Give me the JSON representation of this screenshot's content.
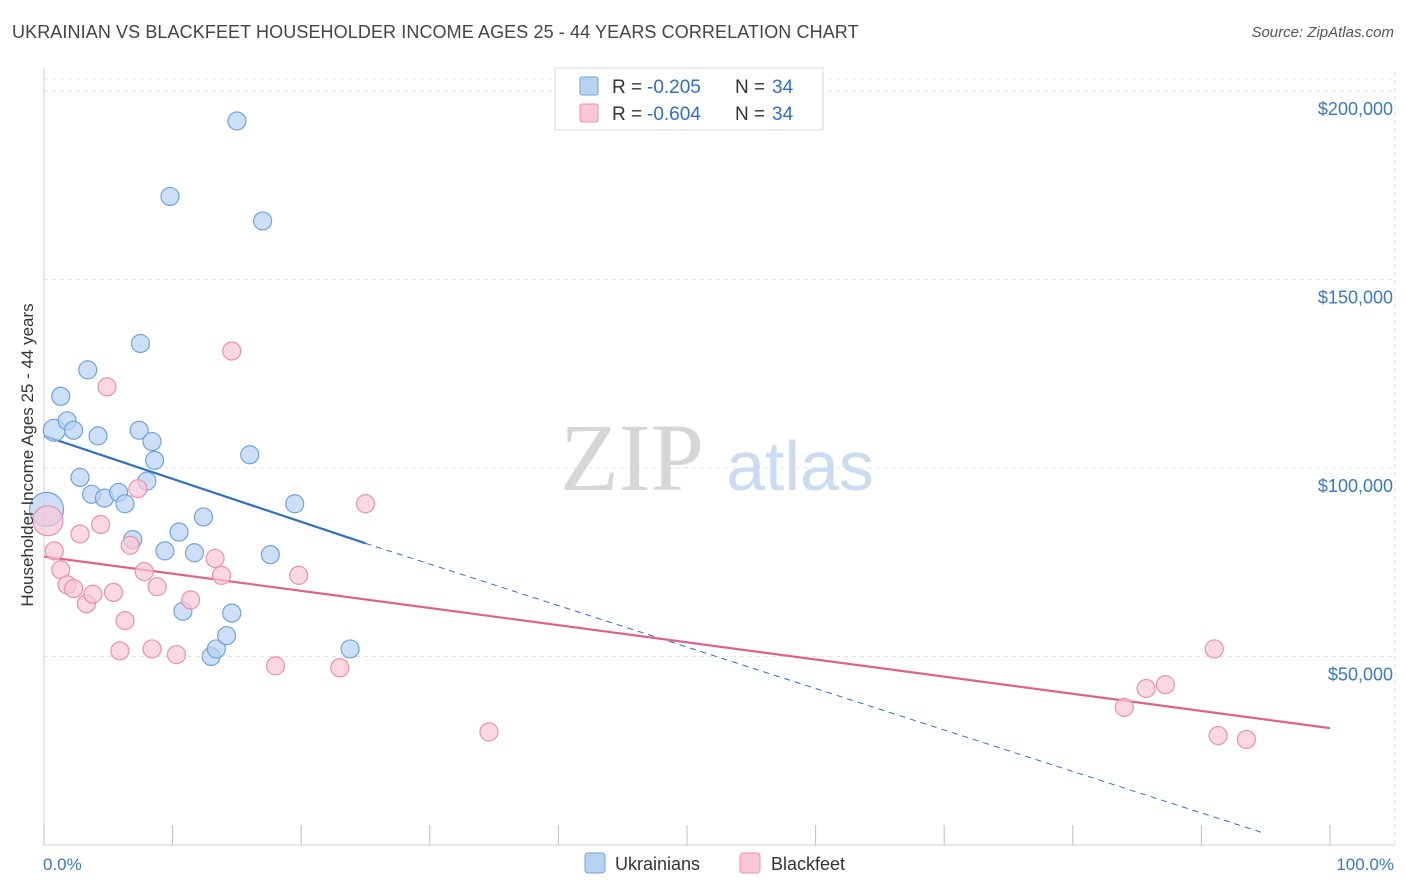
{
  "chart_data": {
    "type": "scatter",
    "title": "UKRAINIAN VS BLACKFEET HOUSEHOLDER INCOME AGES 25 - 44 YEARS CORRELATION CHART",
    "source": "Source: ZipAtlas.com",
    "xlabel": "",
    "ylabel": "Householder Income Ages 25 - 44 years",
    "xlim": [
      0,
      100
    ],
    "ylim": [
      0,
      205000
    ],
    "x_tick_labels": [
      "0.0%",
      "100.0%"
    ],
    "y_ticks": [
      50000,
      100000,
      150000,
      200000
    ],
    "y_tick_labels": [
      "$50,000",
      "$100,000",
      "$150,000",
      "$200,000"
    ],
    "grid": true,
    "watermark": {
      "zip": "ZIP",
      "atlas": "atlas"
    },
    "legend_stats": [
      {
        "r_label": "R =",
        "r_value": "-0.205",
        "n_label": "N =",
        "n_value": "34"
      },
      {
        "r_label": "R =",
        "r_value": "-0.604",
        "n_label": "N =",
        "n_value": "34"
      }
    ],
    "series": [
      {
        "name": "Ukrainians",
        "color": "#6fa3e0",
        "fill": "#b8d2f2",
        "trend_color": "#2d6fd1",
        "trend": {
          "x0": 0,
          "y0": 108500,
          "x1": 25,
          "y1": 80000,
          "dash_to_x": 95,
          "dash_to_y": 3000
        },
        "points": [
          {
            "x": 0.2,
            "y": 89000,
            "size": 17
          },
          {
            "x": 0.8,
            "y": 110000,
            "size": 11
          },
          {
            "x": 1.3,
            "y": 119000,
            "size": 9
          },
          {
            "x": 1.8,
            "y": 112500,
            "size": 9
          },
          {
            "x": 2.3,
            "y": 110000,
            "size": 9
          },
          {
            "x": 2.8,
            "y": 97500,
            "size": 9
          },
          {
            "x": 3.4,
            "y": 126000,
            "size": 9
          },
          {
            "x": 3.7,
            "y": 93000,
            "size": 9
          },
          {
            "x": 4.2,
            "y": 108500,
            "size": 9
          },
          {
            "x": 4.7,
            "y": 92000,
            "size": 9
          },
          {
            "x": 5.8,
            "y": 93500,
            "size": 9
          },
          {
            "x": 6.3,
            "y": 90500,
            "size": 9
          },
          {
            "x": 6.9,
            "y": 81000,
            "size": 9
          },
          {
            "x": 7.4,
            "y": 110000,
            "size": 9
          },
          {
            "x": 7.5,
            "y": 133000,
            "size": 9
          },
          {
            "x": 8.0,
            "y": 96500,
            "size": 9
          },
          {
            "x": 8.4,
            "y": 107000,
            "size": 9
          },
          {
            "x": 8.6,
            "y": 102000,
            "size": 9
          },
          {
            "x": 9.4,
            "y": 78000,
            "size": 9
          },
          {
            "x": 9.8,
            "y": 172000,
            "size": 9
          },
          {
            "x": 10.5,
            "y": 83000,
            "size": 9
          },
          {
            "x": 10.8,
            "y": 62000,
            "size": 9
          },
          {
            "x": 11.7,
            "y": 77500,
            "size": 9
          },
          {
            "x": 12.4,
            "y": 87000,
            "size": 9
          },
          {
            "x": 13.0,
            "y": 50000,
            "size": 9
          },
          {
            "x": 13.4,
            "y": 52000,
            "size": 9
          },
          {
            "x": 14.2,
            "y": 55500,
            "size": 9
          },
          {
            "x": 14.6,
            "y": 61500,
            "size": 9
          },
          {
            "x": 15.0,
            "y": 192000,
            "size": 9
          },
          {
            "x": 16.0,
            "y": 103500,
            "size": 9
          },
          {
            "x": 17.0,
            "y": 165500,
            "size": 9
          },
          {
            "x": 17.6,
            "y": 77000,
            "size": 9
          },
          {
            "x": 19.5,
            "y": 90500,
            "size": 9
          },
          {
            "x": 23.8,
            "y": 52000,
            "size": 9
          }
        ]
      },
      {
        "name": "Blackfeet",
        "color": "#ee8fae",
        "fill": "#f8c6d6",
        "trend_color": "#e0608c",
        "trend": {
          "x0": 0,
          "y0": 76500,
          "x1": 100,
          "y1": 31000
        },
        "points": [
          {
            "x": 0.3,
            "y": 86000,
            "size": 15
          },
          {
            "x": 0.8,
            "y": 78000,
            "size": 9
          },
          {
            "x": 1.3,
            "y": 73000,
            "size": 9
          },
          {
            "x": 1.8,
            "y": 69000,
            "size": 9
          },
          {
            "x": 2.3,
            "y": 68000,
            "size": 9
          },
          {
            "x": 2.8,
            "y": 82500,
            "size": 9
          },
          {
            "x": 3.3,
            "y": 64000,
            "size": 9
          },
          {
            "x": 3.8,
            "y": 66500,
            "size": 9
          },
          {
            "x": 4.4,
            "y": 85000,
            "size": 9
          },
          {
            "x": 4.9,
            "y": 121500,
            "size": 9
          },
          {
            "x": 5.4,
            "y": 67000,
            "size": 9
          },
          {
            "x": 5.9,
            "y": 51500,
            "size": 9
          },
          {
            "x": 6.3,
            "y": 59500,
            "size": 9
          },
          {
            "x": 6.7,
            "y": 79500,
            "size": 9
          },
          {
            "x": 7.3,
            "y": 94500,
            "size": 9
          },
          {
            "x": 7.8,
            "y": 72500,
            "size": 9
          },
          {
            "x": 8.4,
            "y": 52000,
            "size": 9
          },
          {
            "x": 8.8,
            "y": 68500,
            "size": 9
          },
          {
            "x": 10.3,
            "y": 50500,
            "size": 9
          },
          {
            "x": 11.4,
            "y": 65000,
            "size": 9
          },
          {
            "x": 13.3,
            "y": 76000,
            "size": 9
          },
          {
            "x": 13.8,
            "y": 71500,
            "size": 9
          },
          {
            "x": 14.6,
            "y": 131000,
            "size": 9
          },
          {
            "x": 18.0,
            "y": 47500,
            "size": 9
          },
          {
            "x": 19.8,
            "y": 71500,
            "size": 9
          },
          {
            "x": 23.0,
            "y": 47000,
            "size": 9
          },
          {
            "x": 25.0,
            "y": 90500,
            "size": 9
          },
          {
            "x": 34.6,
            "y": 30000,
            "size": 9
          },
          {
            "x": 84.0,
            "y": 36500,
            "size": 9
          },
          {
            "x": 85.7,
            "y": 41500,
            "size": 9
          },
          {
            "x": 87.2,
            "y": 42500,
            "size": 9
          },
          {
            "x": 91.0,
            "y": 52000,
            "size": 9
          },
          {
            "x": 91.3,
            "y": 29000,
            "size": 9
          },
          {
            "x": 93.5,
            "y": 28000,
            "size": 9
          }
        ]
      }
    ]
  }
}
